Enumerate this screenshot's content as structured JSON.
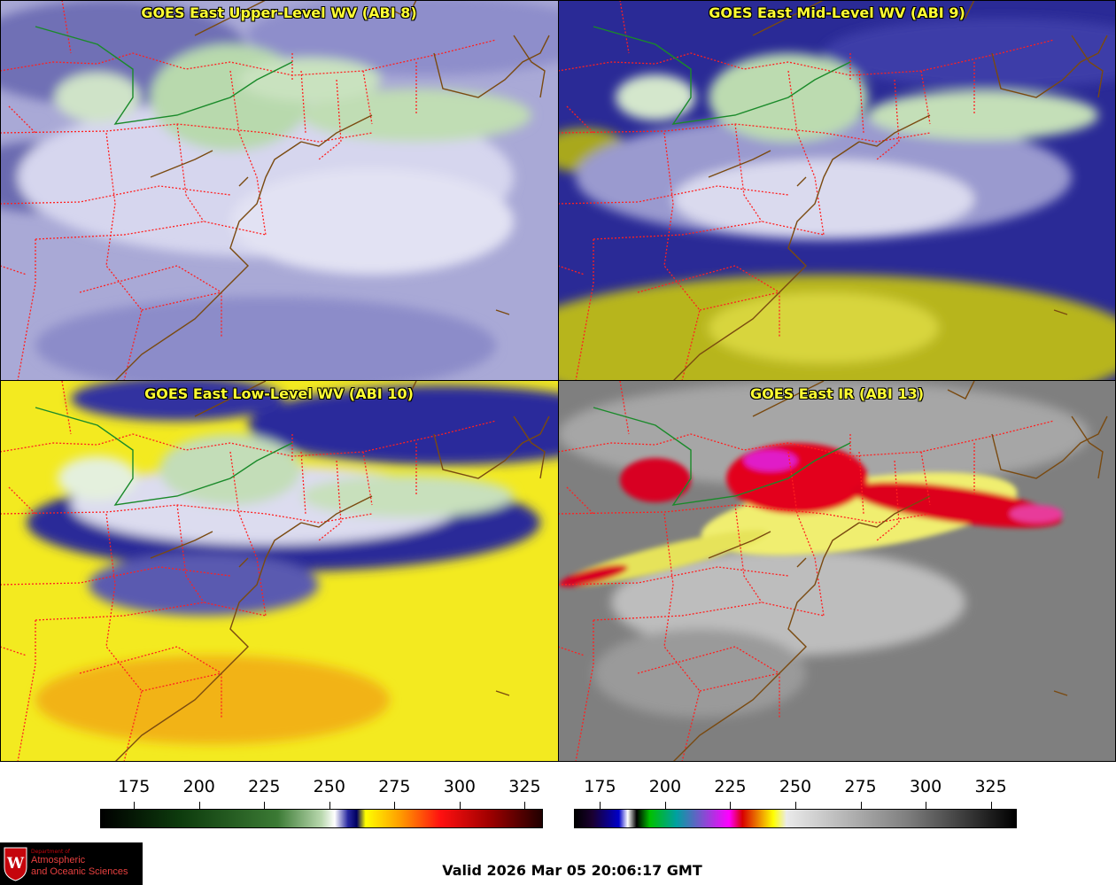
{
  "panels": [
    {
      "title": "GOES East Upper-Level WV (ABI 8)"
    },
    {
      "title": "GOES East Mid-Level WV (ABI 9)"
    },
    {
      "title": "GOES East Low-Level WV (ABI 10)"
    },
    {
      "title": "GOES East IR (ABI 13)"
    }
  ],
  "colorbars": [
    {
      "name": "water-vapor",
      "ticks": [
        "175",
        "200",
        "225",
        "250",
        "275",
        "300",
        "325"
      ],
      "range": [
        162,
        332
      ]
    },
    {
      "name": "infrared",
      "ticks": [
        "175",
        "200",
        "225",
        "250",
        "275",
        "300",
        "325"
      ],
      "range": [
        165,
        335
      ]
    }
  ],
  "valid_time": "Valid 2026 Mar 05 20:06:17 GMT",
  "logo": {
    "dept": "Department of",
    "line1": "Atmospheric",
    "line2": "and Oceanic Sciences",
    "letter": "W"
  },
  "colors": {
    "title": "#ffff33",
    "state_border": "#ff2020",
    "coast": "#7a4a10",
    "wv_dry": "#ffff00",
    "wv_moist": "#ffffff",
    "ir_cold": "#e00020"
  }
}
